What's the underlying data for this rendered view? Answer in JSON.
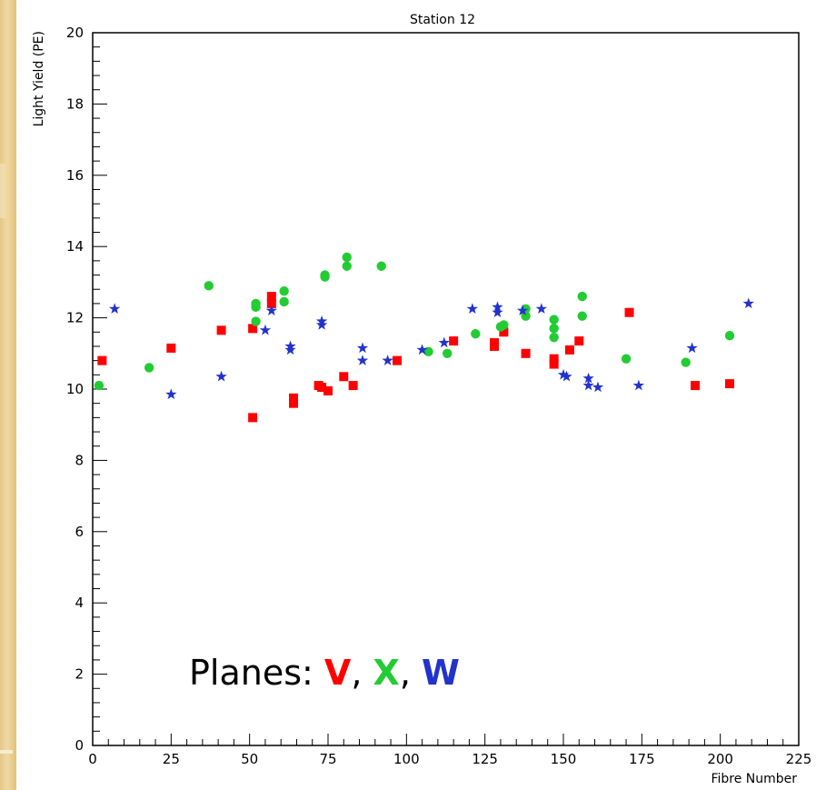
{
  "chart_data": {
    "type": "scatter",
    "title": "Station 12",
    "xlabel": "Fibre Number",
    "ylabel": "Light Yield (PE)",
    "xlim": [
      0,
      225
    ],
    "ylim": [
      0,
      20
    ],
    "x_ticks": [
      "0",
      "25",
      "50",
      "75",
      "100",
      "125",
      "150",
      "175",
      "200",
      "225"
    ],
    "y_ticks": [
      "0",
      "2",
      "4",
      "6",
      "8",
      "10",
      "12",
      "14",
      "16",
      "18",
      "20"
    ],
    "grid": false,
    "legend": {
      "prefix": "Planes: ",
      "entries": [
        {
          "label": "V",
          "color": "#ff0000"
        },
        {
          "label": "X",
          "color": "#22cc33"
        },
        {
          "label": "W",
          "color": "#2233cc"
        }
      ],
      "separator": ", ",
      "placement": "bottom-left"
    },
    "series": [
      {
        "plane": "V",
        "color": "#ff0000",
        "marker": "square",
        "points": [
          [
            3,
            10.8
          ],
          [
            25,
            11.15
          ],
          [
            41,
            11.65
          ],
          [
            51,
            9.2
          ],
          [
            51,
            11.7
          ],
          [
            57,
            12.4
          ],
          [
            57,
            12.6
          ],
          [
            64,
            9.6
          ],
          [
            64,
            9.75
          ],
          [
            72,
            10.1
          ],
          [
            73,
            10.05
          ],
          [
            75,
            9.95
          ],
          [
            80,
            10.35
          ],
          [
            83,
            10.1
          ],
          [
            97,
            10.8
          ],
          [
            115,
            11.35
          ],
          [
            128,
            11.2
          ],
          [
            128,
            11.3
          ],
          [
            131,
            11.6
          ],
          [
            138,
            11.0
          ],
          [
            147,
            10.85
          ],
          [
            147,
            10.7
          ],
          [
            152,
            11.1
          ],
          [
            155,
            11.35
          ],
          [
            171,
            12.15
          ],
          [
            192,
            10.1
          ],
          [
            203,
            10.15
          ]
        ]
      },
      {
        "plane": "X",
        "color": "#22cc33",
        "marker": "circle",
        "points": [
          [
            2,
            10.1
          ],
          [
            18,
            10.6
          ],
          [
            37,
            12.9
          ],
          [
            52,
            12.3
          ],
          [
            52,
            12.4
          ],
          [
            52,
            11.9
          ],
          [
            61,
            12.75
          ],
          [
            61,
            12.45
          ],
          [
            74,
            13.15
          ],
          [
            74,
            13.2
          ],
          [
            81,
            13.45
          ],
          [
            81,
            13.7
          ],
          [
            92,
            13.45
          ],
          [
            107,
            11.05
          ],
          [
            113,
            11.0
          ],
          [
            122,
            11.55
          ],
          [
            130,
            11.75
          ],
          [
            131,
            11.8
          ],
          [
            138,
            12.05
          ],
          [
            138,
            12.25
          ],
          [
            147,
            11.95
          ],
          [
            147,
            11.7
          ],
          [
            147,
            11.45
          ],
          [
            156,
            12.6
          ],
          [
            156,
            12.05
          ],
          [
            170,
            10.85
          ],
          [
            189,
            10.75
          ],
          [
            203,
            11.5
          ]
        ]
      },
      {
        "plane": "W",
        "color": "#2233cc",
        "marker": "star",
        "points": [
          [
            7,
            12.25
          ],
          [
            25,
            9.85
          ],
          [
            41,
            10.35
          ],
          [
            55,
            11.65
          ],
          [
            57,
            12.2
          ],
          [
            63,
            11.2
          ],
          [
            63,
            11.1
          ],
          [
            73,
            11.9
          ],
          [
            73,
            11.8
          ],
          [
            86,
            11.15
          ],
          [
            86,
            10.8
          ],
          [
            94,
            10.8
          ],
          [
            105,
            11.1
          ],
          [
            112,
            11.3
          ],
          [
            121,
            12.25
          ],
          [
            129,
            12.3
          ],
          [
            129,
            12.15
          ],
          [
            137,
            12.2
          ],
          [
            143,
            12.25
          ],
          [
            150,
            10.4
          ],
          [
            151,
            10.35
          ],
          [
            158,
            10.3
          ],
          [
            158,
            10.1
          ],
          [
            161,
            10.05
          ],
          [
            174,
            10.1
          ],
          [
            191,
            11.15
          ],
          [
            209,
            12.4
          ]
        ]
      }
    ]
  }
}
